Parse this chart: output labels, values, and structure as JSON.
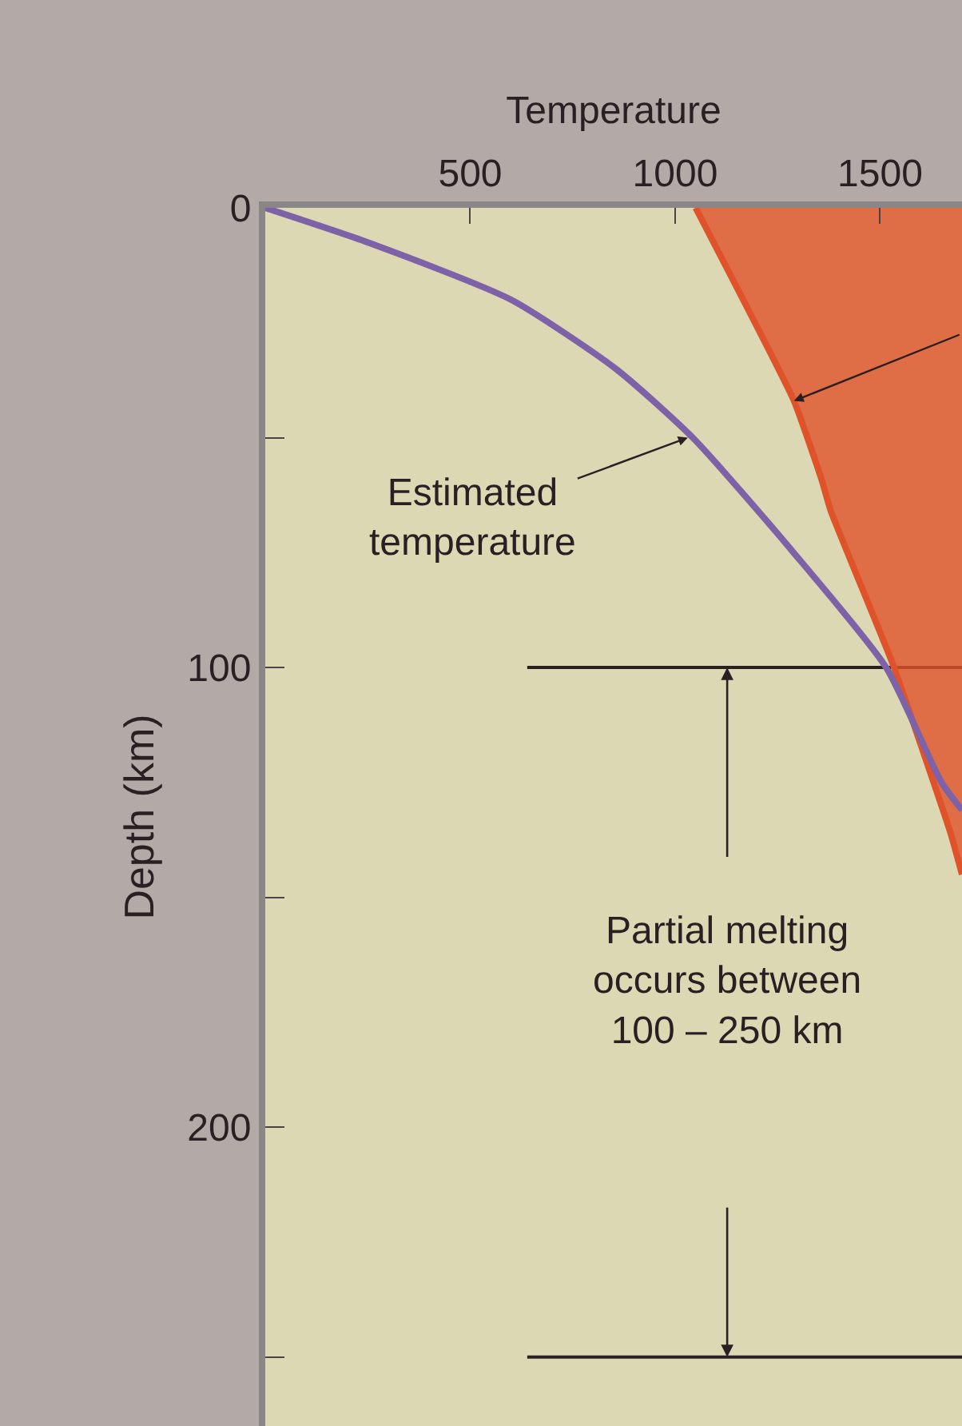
{
  "chart_data": {
    "type": "line",
    "xlabel": "Temperature",
    "ylabel": "Depth (km)",
    "xlim": [
      0,
      1700
    ],
    "xticks": [
      500,
      1000,
      1500
    ],
    "ylim": [
      265,
      0
    ],
    "yticks": [
      0,
      {
        "value": 50,
        "label": null
      },
      100,
      {
        "value": 150,
        "label": null
      },
      200,
      {
        "value": 250,
        "label": null
      }
    ],
    "grid": false,
    "series": [
      {
        "type": "area",
        "color": "#e0522a",
        "x": [
          1050,
          1290,
          1357,
          1380,
          1530,
          1672,
          1700
        ],
        "values": [
          0,
          42,
          59,
          66,
          99,
          136,
          145
        ]
      },
      {
        "color": "#7d62a8",
        "x": [
          0,
          253,
          600,
          855,
          1043,
          1289,
          1515,
          1650,
          1700
        ],
        "values": [
          0,
          7.6,
          20,
          35,
          50,
          75,
          100,
          125,
          131
        ]
      }
    ],
    "ref_lines": [
      {
        "axis": "y",
        "value": 100,
        "color": "#2a1f22"
      },
      {
        "axis": "y",
        "value": 250,
        "color": "#2a1f22"
      }
    ],
    "annotations": [
      {
        "text": "Estimated\ntemperature",
        "x": 1031,
        "y": 50
      },
      "Partial melting\noccurs between\n100 – 250 km"
    ]
  }
}
